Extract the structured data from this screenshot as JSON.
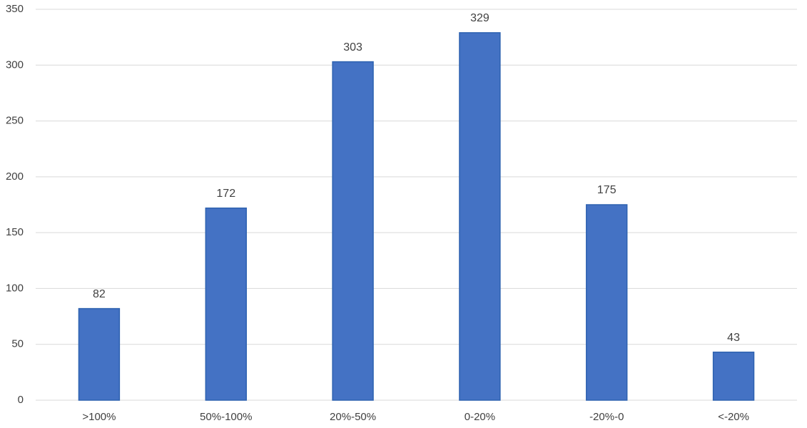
{
  "chart_data": {
    "type": "bar",
    "categories": [
      ">100%",
      "50%-100%",
      "20%-50%",
      "0-20%",
      "-20%-0",
      "<-20%"
    ],
    "values": [
      82,
      172,
      303,
      329,
      175,
      43
    ],
    "color": "#4472c4",
    "ylim": [
      0,
      350
    ],
    "yticks": [
      0,
      50,
      100,
      150,
      200,
      250,
      300,
      350
    ],
    "grid": true,
    "data_labels": true
  }
}
